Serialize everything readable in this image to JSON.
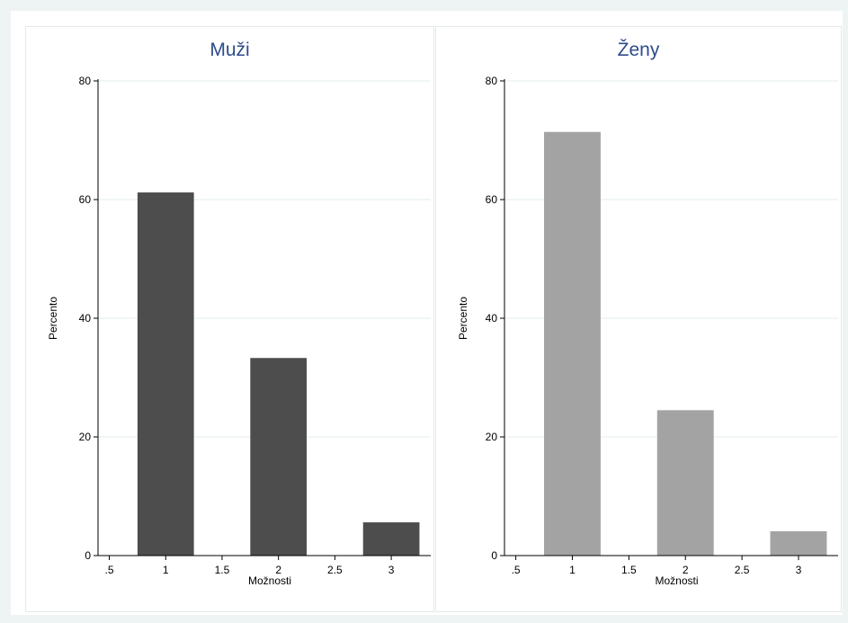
{
  "chart_data": [
    {
      "type": "bar",
      "title": "Muži",
      "xlabel": "Možnosti",
      "ylabel": "Percento",
      "xlim": [
        0.4,
        3.35
      ],
      "ylim": [
        0,
        80
      ],
      "xticks": [
        ".5",
        "1",
        "1.5",
        "2",
        "2.5",
        "3"
      ],
      "xtick_values": [
        0.5,
        1,
        1.5,
        2,
        2.5,
        3
      ],
      "yticks": [
        0,
        20,
        40,
        60,
        80
      ],
      "bar_width": 0.5,
      "x": [
        1,
        2,
        3
      ],
      "values": [
        61.2,
        33.3,
        5.6
      ],
      "color": "#4d4d4d",
      "grid": true
    },
    {
      "type": "bar",
      "title": "Ženy",
      "xlabel": "Možnosti",
      "ylabel": "Percento",
      "xlim": [
        0.4,
        3.35
      ],
      "ylim": [
        0,
        80
      ],
      "xticks": [
        ".5",
        "1",
        "1.5",
        "2",
        "2.5",
        "3"
      ],
      "xtick_values": [
        0.5,
        1,
        1.5,
        2,
        2.5,
        3
      ],
      "yticks": [
        0,
        20,
        40,
        60,
        80
      ],
      "bar_width": 0.5,
      "x": [
        1,
        2,
        3
      ],
      "values": [
        71.4,
        24.5,
        4.1
      ],
      "color": "#a3a3a3",
      "grid": true
    }
  ]
}
